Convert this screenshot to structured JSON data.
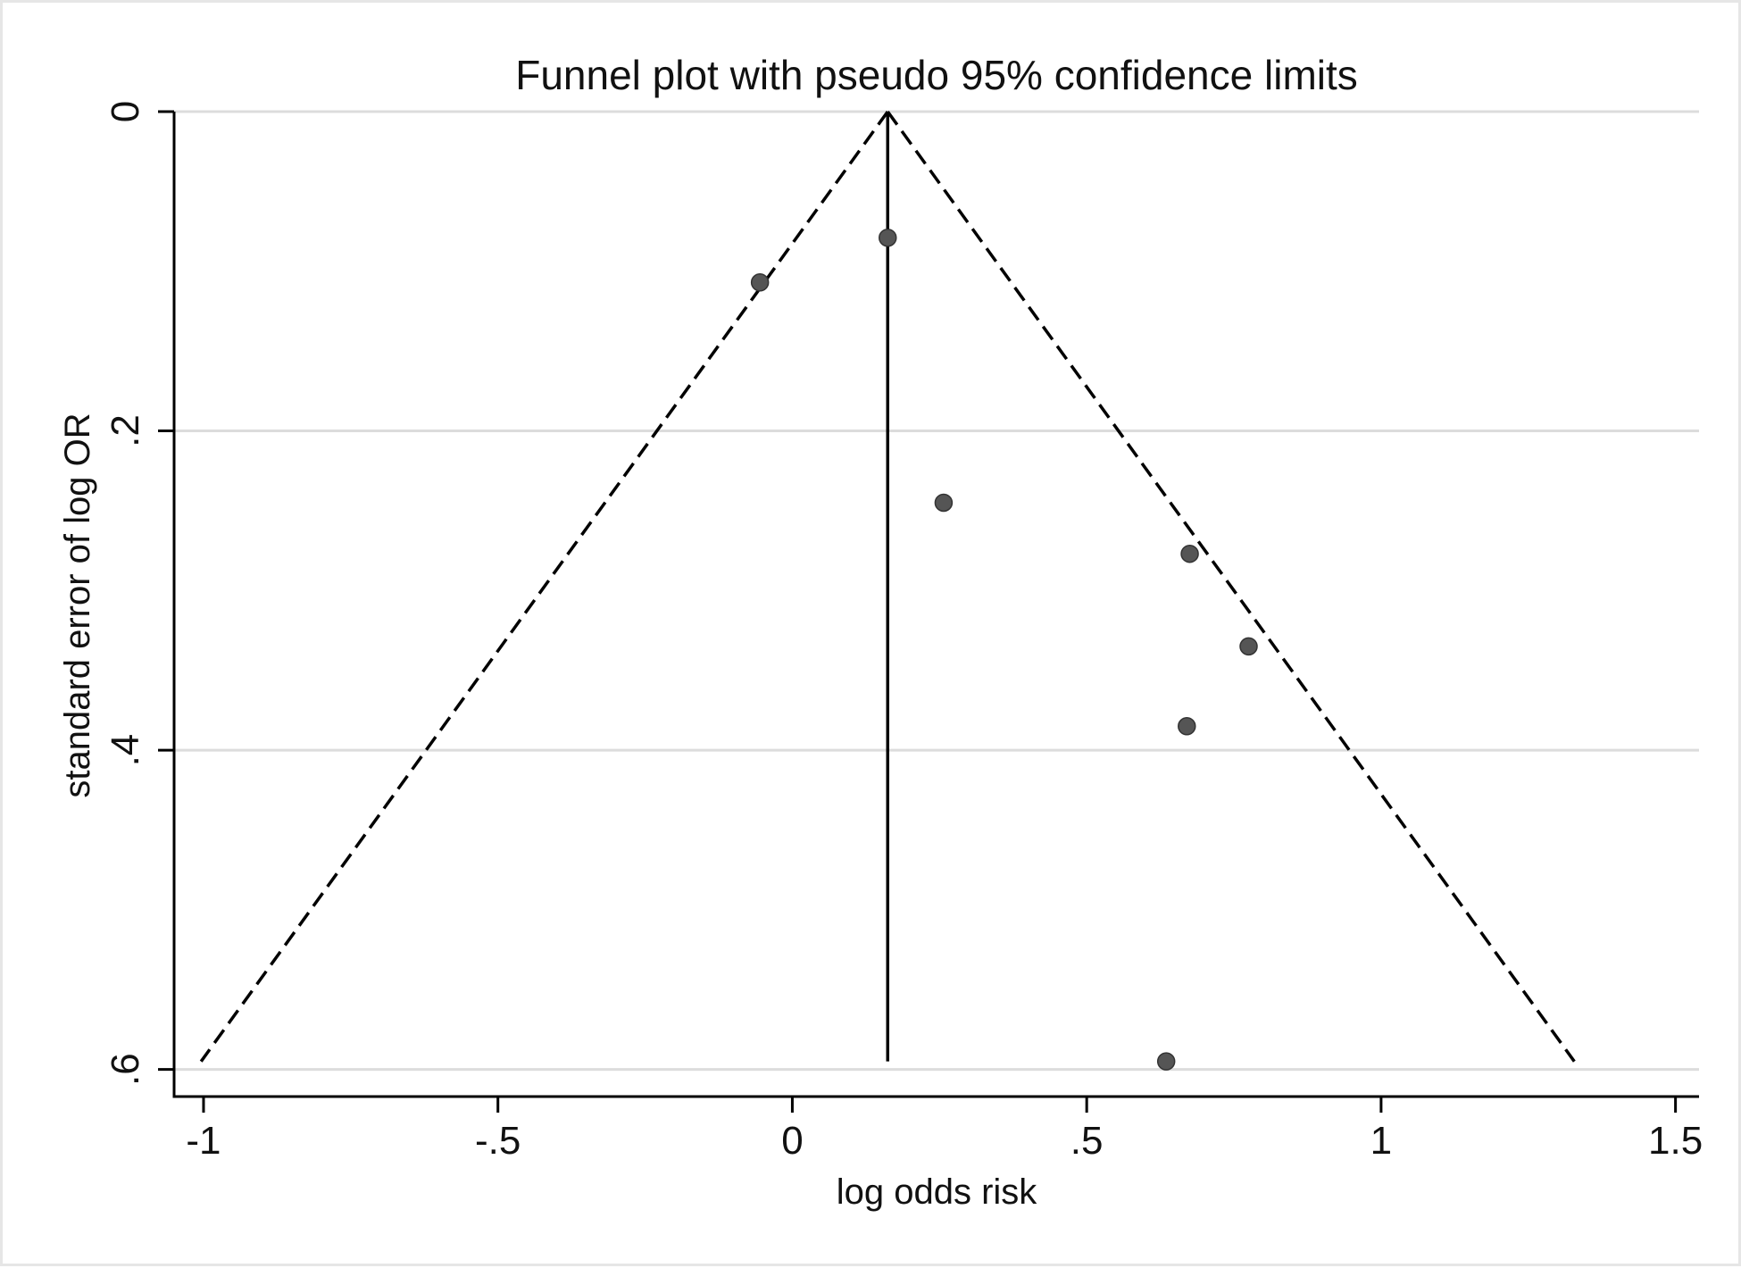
{
  "chart_data": {
    "type": "scatter",
    "title": "Funnel plot with pseudo 95% confidence limits",
    "xlabel": "log odds risk",
    "ylabel": "standard error of log OR",
    "xlim": [
      -1.05,
      1.54
    ],
    "ylim": [
      0,
      0.617
    ],
    "y_reversed": true,
    "grid": true,
    "x_ticks": [
      {
        "value": -1,
        "label": "-1"
      },
      {
        "value": -0.5,
        "label": "-.5"
      },
      {
        "value": 0,
        "label": "0"
      },
      {
        "value": 0.5,
        "label": ".5"
      },
      {
        "value": 1,
        "label": "1"
      },
      {
        "value": 1.5,
        "label": "1.5"
      }
    ],
    "y_ticks": [
      {
        "value": 0,
        "label": "0"
      },
      {
        "value": 0.2,
        "label": ".2"
      },
      {
        "value": 0.4,
        "label": ".4"
      },
      {
        "value": 0.6,
        "label": ".6"
      }
    ],
    "pooled_estimate": 0.162,
    "pseudo_ci_se_max": 0.595,
    "points": [
      {
        "x": -0.055,
        "y": 0.107
      },
      {
        "x": 0.162,
        "y": 0.079
      },
      {
        "x": 0.257,
        "y": 0.245
      },
      {
        "x": 0.675,
        "y": 0.277
      },
      {
        "x": 0.775,
        "y": 0.335
      },
      {
        "x": 0.67,
        "y": 0.385
      },
      {
        "x": 0.635,
        "y": 0.595
      }
    ],
    "colors": {
      "points": "#555555",
      "lines": "#000000",
      "grid": "#dcdcdc",
      "axis": "#000000"
    }
  }
}
